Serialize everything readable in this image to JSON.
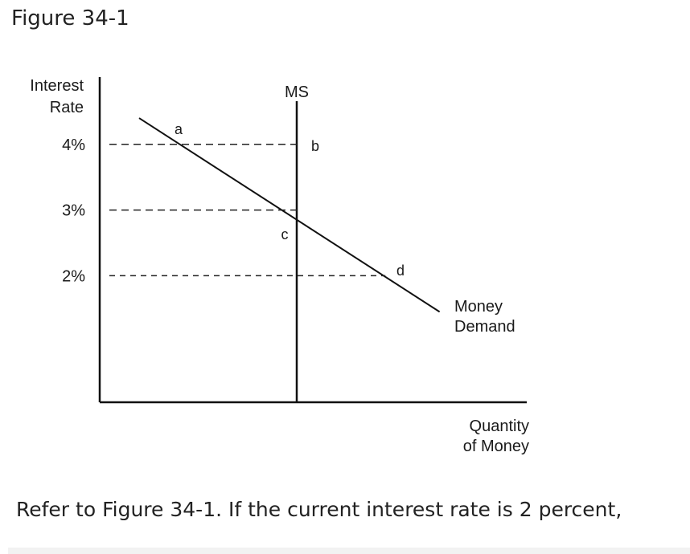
{
  "figure_title": "Figure 34-1",
  "question": "Refer to Figure 34-1. If the current interest rate is 2 percent,",
  "chart_data": {
    "type": "line",
    "ylabel": [
      "Interest",
      "Rate"
    ],
    "xlabel": [
      "Quantity",
      "of Money"
    ],
    "y_ticks": [
      {
        "value": 4,
        "label": "4%"
      },
      {
        "value": 3,
        "label": "3%"
      },
      {
        "value": 2,
        "label": "2%"
      }
    ],
    "series": [
      {
        "name": "MS",
        "kind": "vertical",
        "x": 2.0
      },
      {
        "name": [
          "Money",
          "Demand"
        ],
        "kind": "line",
        "points": [
          [
            0.4,
            4.4
          ],
          [
            3.45,
            1.45
          ]
        ]
      }
    ],
    "points": [
      {
        "label": "a",
        "x": 0.8,
        "y": 4
      },
      {
        "label": "b",
        "x": 2.0,
        "y": 4
      },
      {
        "label": "c",
        "x": 2.0,
        "y": 3
      },
      {
        "label": "d",
        "x": 2.9,
        "y": 2
      }
    ],
    "dashed_guides": [
      4,
      3,
      2
    ],
    "grid": false,
    "xlim": [
      0,
      4.3
    ],
    "ylim": [
      0,
      5.0
    ]
  }
}
